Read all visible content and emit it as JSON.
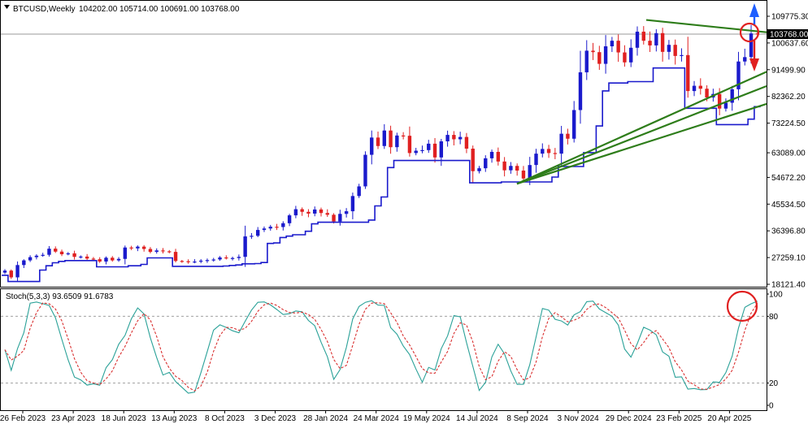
{
  "header": {
    "symbol": "BTCUSD,Weekly",
    "ohlc": "104202.00 105714.00 100691.00 103768.00"
  },
  "indicator": {
    "label": "Stoch(5,3,3) 93.6509 91.6783",
    "levels": [
      80,
      20
    ],
    "scale_labels": [
      "100",
      "80",
      "20",
      "0"
    ],
    "main_color": "#2aa198",
    "signal_color": "#d93030"
  },
  "colors": {
    "bull": "#1a1acc",
    "bear": "#e02020",
    "trail": "#1a1acc",
    "trendline": "#2e7d1a",
    "annot": "#e02020",
    "arrow_up": "#1e5eff",
    "arrow_down": "#e02020"
  },
  "price_axis": {
    "labels": [
      "109775.30",
      "100637.60",
      "91499.90",
      "82362.20",
      "73224.50",
      "63089.00",
      "54672.20",
      "45534.50",
      "36396.80",
      "27259.10",
      "18121.40"
    ],
    "current_price": "103768.00"
  },
  "time_axis": {
    "labels": [
      "26 Feb 2023",
      "23 Apr 2023",
      "18 Jun 2023",
      "13 Aug 2023",
      "8 Oct 2023",
      "3 Dec 2023",
      "28 Jan 2024",
      "24 Mar 2024",
      "19 May 2024",
      "14 Jul 2024",
      "8 Sep 2024",
      "3 Nov 2024",
      "29 Dec 2024",
      "23 Feb 2025",
      "20 Apr 2025"
    ]
  },
  "chart_data": {
    "type": "candlestick",
    "timeframe": "Weekly",
    "ylim": [
      18121.4,
      109775.3
    ],
    "closes": [
      22800,
      20500,
      24700,
      26300,
      27400,
      27900,
      28200,
      30300,
      29300,
      28400,
      28700,
      27500,
      27600,
      26900,
      26700,
      25900,
      27200,
      26300,
      26800,
      30700,
      30400,
      31000,
      30200,
      29200,
      29700,
      29400,
      29200,
      26100,
      26000,
      25800,
      25900,
      26200,
      26400,
      26600,
      27300,
      27000,
      27100,
      27500,
      34500,
      34700,
      36700,
      37200,
      37800,
      37700,
      39000,
      41700,
      43800,
      42900,
      42300,
      43700,
      42500,
      41900,
      39600,
      42200,
      43100,
      48300,
      51600,
      62400,
      68300,
      65400,
      70700,
      65000,
      69000,
      68900,
      63000,
      63800,
      64000,
      66200,
      61500,
      67000,
      69200,
      67700,
      68500,
      64500,
      56800,
      57800,
      61200,
      63400,
      60100,
      57100,
      58600,
      57000,
      54300,
      58900,
      62800,
      64400,
      63000,
      62800,
      69600,
      67900,
      77700,
      90600,
      98000,
      97500,
      93500,
      99500,
      101400,
      97400,
      94000,
      99000,
      104500,
      101400,
      99800,
      104000,
      97600,
      100000,
      96200,
      96500,
      84200,
      86000,
      85000,
      82000,
      83200,
      78200,
      80200,
      84800,
      94300,
      95800,
      103900,
      103768
    ],
    "stoch_main_last": 93.6509,
    "stoch_signal_last": 91.6783,
    "stoch_params": "5,3,3",
    "annotations": [
      "resistance-trendline",
      "three-rising-support-trendlines",
      "current-price-circle",
      "stoch-overbought-circle",
      "up-down-breakout-arrows"
    ]
  }
}
